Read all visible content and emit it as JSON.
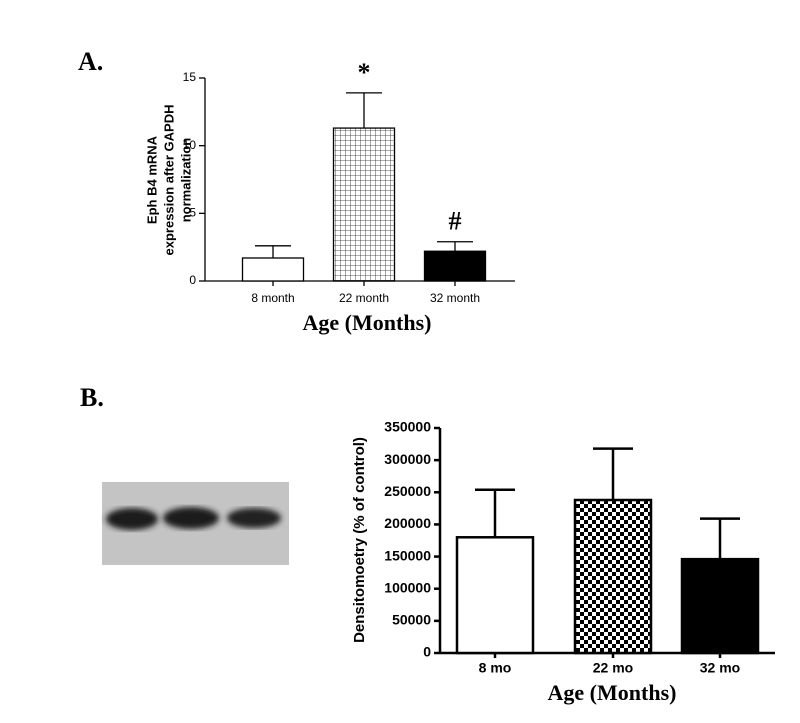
{
  "panels": [
    "A.",
    "B."
  ],
  "chart_data": [
    {
      "type": "bar",
      "ylabel": [
        "Eph B4 mRNA",
        "expression after GAPDH",
        "normalization"
      ],
      "xlabel": "Age (Months)",
      "categories": [
        "8 month",
        "22 month",
        "32 month"
      ],
      "values": [
        1.7,
        11.3,
        2.2
      ],
      "errors": [
        0.9,
        2.6,
        0.7
      ],
      "colors": [
        "#ffffff",
        "#ffffff",
        "#000000"
      ],
      "patterns": [
        "solid",
        "grid",
        "solid"
      ],
      "value_annotations": [
        null,
        "*",
        "#"
      ],
      "ylim": [
        0,
        15
      ],
      "yticks": [
        0,
        5,
        10,
        15
      ]
    },
    {
      "type": "bar",
      "ylabel": [
        "Densitomoetry (% of control)"
      ],
      "xlabel": "Age (Months)",
      "categories": [
        "8 mo",
        "22 mo",
        "32 mo"
      ],
      "values": [
        180000,
        238000,
        146000
      ],
      "errors": [
        74000,
        80000,
        63000
      ],
      "colors": [
        "#ffffff",
        "#ffffff",
        "#000000"
      ],
      "patterns": [
        "solid",
        "checker",
        "solid"
      ],
      "ylim": [
        0,
        350000
      ],
      "yticks": [
        0,
        50000,
        100000,
        150000,
        200000,
        250000,
        300000,
        350000
      ]
    }
  ]
}
